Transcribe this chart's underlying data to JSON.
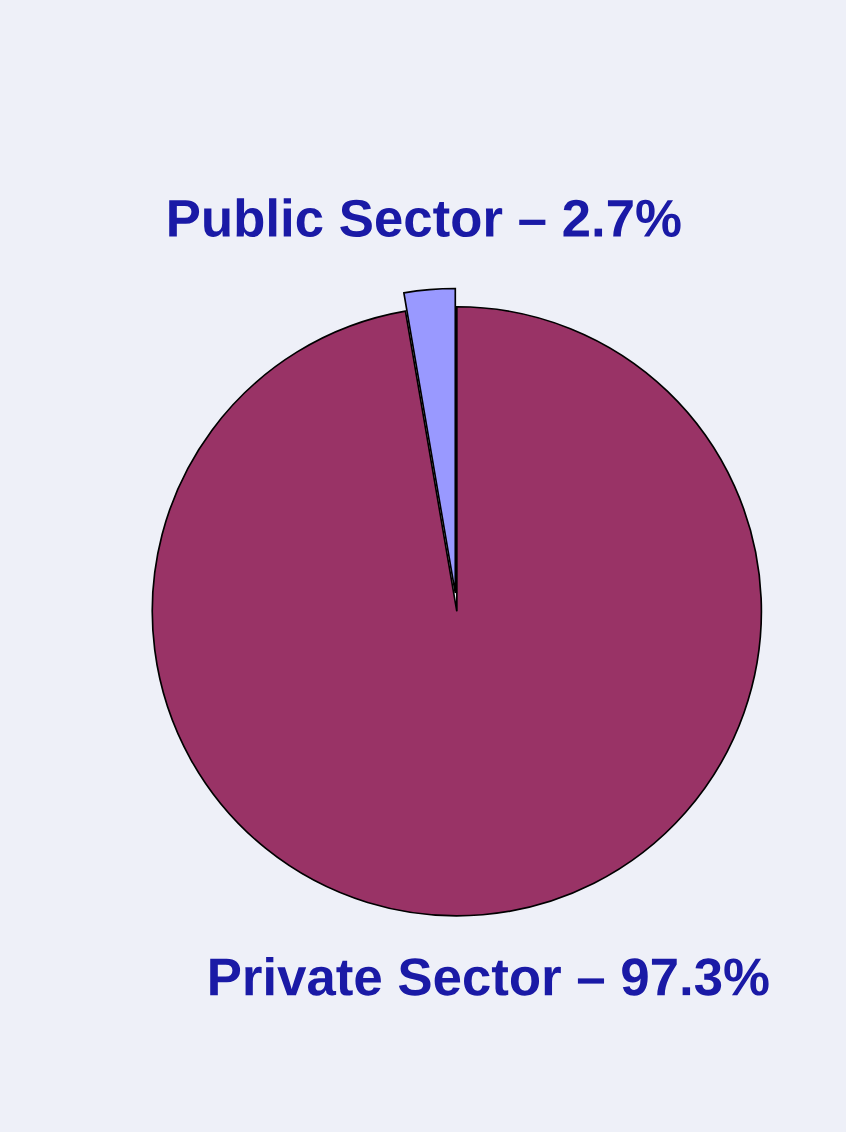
{
  "chart_data": {
    "type": "pie",
    "categories": [
      "Public Sector – 2.7%",
      "Private Sector – 97.3%"
    ],
    "values": [
      2.7,
      97.3
    ],
    "colors": [
      "#9999ff",
      "#993366"
    ]
  }
}
